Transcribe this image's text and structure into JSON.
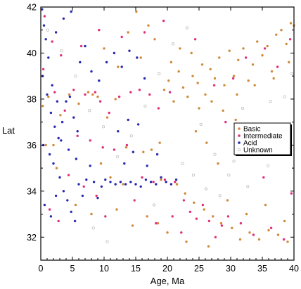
{
  "chart_data": {
    "type": "scatter",
    "xlabel": "Age, Ma",
    "ylabel": "Lat",
    "xlim": [
      0,
      40
    ],
    "ylim": [
      31,
      42
    ],
    "xticks": [
      0,
      5,
      10,
      15,
      20,
      25,
      30,
      35,
      40
    ],
    "yticks": [
      32,
      34,
      36,
      38,
      40,
      42
    ],
    "grid": false,
    "legend_position": "right",
    "colors": {
      "Basic": "#d08a3a",
      "Intermediate": "#e0307c",
      "Acid": "#2a2ab0",
      "Unknown": "#aaaaaa"
    },
    "series": [
      {
        "name": "Basic",
        "points": [
          [
            0.3,
            37.7
          ],
          [
            1.2,
            38.1
          ],
          [
            2.0,
            36.0
          ],
          [
            3.1,
            37.3
          ],
          [
            4.5,
            38.2
          ],
          [
            6.0,
            37.8
          ],
          [
            7.5,
            38.3
          ],
          [
            8.2,
            38.2
          ],
          [
            9.0,
            38.1
          ],
          [
            10.5,
            37.2
          ],
          [
            11.8,
            38.0
          ],
          [
            13.5,
            35.9
          ],
          [
            15.1,
            41.8
          ],
          [
            16.2,
            35.7
          ],
          [
            17.5,
            35.8
          ],
          [
            18.8,
            36.1
          ],
          [
            19.5,
            38.4
          ],
          [
            20.2,
            38.8
          ],
          [
            21.0,
            37.9
          ],
          [
            21.8,
            39.2
          ],
          [
            22.5,
            38.5
          ],
          [
            23.2,
            38.1
          ],
          [
            24.0,
            39.0
          ],
          [
            24.8,
            38.7
          ],
          [
            25.5,
            39.5
          ],
          [
            26.0,
            38.2
          ],
          [
            26.8,
            39.3
          ],
          [
            27.5,
            38.9
          ],
          [
            28.2,
            39.8
          ],
          [
            29.0,
            38.6
          ],
          [
            29.8,
            40.1
          ],
          [
            30.5,
            39.0
          ],
          [
            31.2,
            39.7
          ],
          [
            32.0,
            40.2
          ],
          [
            32.8,
            38.8
          ],
          [
            33.5,
            39.5
          ],
          [
            34.2,
            40.5
          ],
          [
            35.0,
            39.9
          ],
          [
            35.8,
            40.3
          ],
          [
            36.5,
            39.2
          ],
          [
            37.2,
            40.8
          ],
          [
            38.0,
            41.0
          ],
          [
            38.8,
            40.4
          ],
          [
            39.5,
            41.3
          ],
          [
            40.0,
            41.2
          ],
          [
            22.0,
            40.2
          ],
          [
            23.8,
            40.0
          ],
          [
            20.6,
            39.6
          ],
          [
            25.0,
            37.6
          ],
          [
            27.0,
            37.9
          ],
          [
            21.5,
            34.3
          ],
          [
            22.8,
            33.9
          ],
          [
            24.2,
            33.5
          ],
          [
            25.8,
            33.2
          ],
          [
            27.2,
            32.9
          ],
          [
            28.5,
            32.6
          ],
          [
            30.2,
            32.4
          ],
          [
            31.5,
            31.9
          ],
          [
            33.0,
            32.2
          ],
          [
            34.5,
            31.9
          ],
          [
            36.0,
            32.3
          ],
          [
            37.5,
            32.1
          ],
          [
            39.0,
            31.8
          ],
          [
            18.5,
            32.6
          ],
          [
            20.0,
            32.2
          ],
          [
            23.0,
            31.8
          ],
          [
            26.5,
            31.6
          ],
          [
            5.5,
            33.4
          ],
          [
            8.0,
            33.0
          ],
          [
            12.0,
            33.2
          ],
          [
            14.5,
            32.5
          ],
          [
            16.8,
            32.9
          ],
          [
            9.5,
            35.2
          ],
          [
            11.0,
            34.6
          ],
          [
            13.0,
            34.3
          ],
          [
            19.0,
            34.5
          ],
          [
            2.5,
            35.0
          ],
          [
            0.8,
            36.0
          ],
          [
            17.0,
            41.2
          ],
          [
            18.0,
            40.6
          ],
          [
            31.0,
            38.2
          ],
          [
            33.8,
            38.6
          ],
          [
            36.8,
            38.9
          ],
          [
            39.2,
            39.6
          ],
          [
            28.8,
            37.5
          ],
          [
            30.8,
            37.1
          ],
          [
            24.5,
            36.6
          ],
          [
            26.2,
            36.1
          ],
          [
            28.0,
            35.2
          ],
          [
            15.8,
            39.8
          ],
          [
            13.8,
            40.9
          ],
          [
            12.2,
            39.4
          ],
          [
            10.0,
            40.2
          ],
          [
            29.5,
            33.6
          ],
          [
            32.5,
            33.0
          ],
          [
            35.5,
            33.4
          ],
          [
            38.5,
            32.7
          ]
        ]
      },
      {
        "name": "Intermediate",
        "points": [
          [
            0.6,
            41.6
          ],
          [
            1.8,
            40.5
          ],
          [
            0.4,
            39.3
          ],
          [
            2.2,
            38.3
          ],
          [
            3.8,
            37.5
          ],
          [
            5.2,
            38.4
          ],
          [
            7.0,
            38.2
          ],
          [
            8.6,
            38.3
          ],
          [
            9.4,
            37.9
          ],
          [
            10.8,
            37.4
          ],
          [
            12.4,
            38.1
          ],
          [
            14.2,
            38.3
          ],
          [
            15.6,
            38.4
          ],
          [
            17.2,
            38.2
          ],
          [
            18.6,
            37.6
          ],
          [
            20.4,
            38.3
          ],
          [
            5.8,
            36.4
          ],
          [
            7.8,
            36.2
          ],
          [
            9.8,
            35.9
          ],
          [
            11.6,
            35.8
          ],
          [
            13.6,
            36.0
          ],
          [
            16.0,
            34.6
          ],
          [
            17.8,
            34.4
          ],
          [
            19.6,
            34.5
          ],
          [
            21.2,
            34.4
          ],
          [
            22.6,
            33.6
          ],
          [
            23.6,
            33.1
          ],
          [
            24.6,
            32.8
          ],
          [
            25.6,
            33.4
          ],
          [
            26.6,
            32.7
          ],
          [
            27.6,
            32.0
          ],
          [
            28.6,
            32.5
          ],
          [
            29.6,
            32.9
          ],
          [
            31.6,
            32.6
          ],
          [
            33.6,
            32.1
          ],
          [
            36.4,
            32.4
          ],
          [
            38.4,
            31.9
          ],
          [
            18.2,
            32.6
          ],
          [
            20.8,
            32.9
          ],
          [
            22.2,
            32.2
          ],
          [
            3.2,
            39.9
          ],
          [
            6.4,
            40.3
          ],
          [
            9.2,
            41.0
          ],
          [
            12.8,
            40.7
          ],
          [
            16.4,
            40.9
          ],
          [
            19.4,
            41.4
          ],
          [
            24.4,
            40.6
          ],
          [
            27.4,
            38.6
          ],
          [
            30.4,
            38.9
          ],
          [
            32.4,
            39.8
          ],
          [
            35.4,
            40.2
          ],
          [
            37.4,
            39.4
          ],
          [
            39.4,
            40.6
          ],
          [
            29.2,
            37.0
          ],
          [
            33.2,
            35.8
          ],
          [
            35.2,
            34.6
          ],
          [
            37.6,
            35.6
          ],
          [
            39.6,
            33.9
          ],
          [
            4.4,
            34.7
          ],
          [
            6.8,
            34.2
          ],
          [
            8.8,
            33.8
          ],
          [
            10.2,
            32.9
          ],
          [
            14.8,
            33.6
          ],
          [
            1.4,
            33.2
          ],
          [
            2.8,
            32.7
          ]
        ]
      },
      {
        "name": "Acid",
        "points": [
          [
            0.2,
            41.9
          ],
          [
            0.5,
            41.2
          ],
          [
            0.8,
            40.6
          ],
          [
            1.2,
            39.8
          ],
          [
            0.3,
            39.0
          ],
          [
            1.0,
            38.2
          ],
          [
            1.6,
            37.4
          ],
          [
            2.2,
            36.8
          ],
          [
            2.8,
            36.3
          ],
          [
            3.4,
            37.0
          ],
          [
            4.0,
            37.9
          ],
          [
            4.6,
            38.1
          ],
          [
            5.2,
            37.2
          ],
          [
            5.8,
            36.6
          ],
          [
            0.4,
            36.0
          ],
          [
            1.4,
            35.6
          ],
          [
            2.0,
            35.2
          ],
          [
            3.0,
            34.6
          ],
          [
            3.6,
            34.0
          ],
          [
            4.2,
            33.6
          ],
          [
            4.8,
            33.1
          ],
          [
            5.4,
            32.7
          ],
          [
            6.0,
            34.3
          ],
          [
            6.6,
            33.8
          ],
          [
            7.2,
            34.5
          ],
          [
            7.8,
            35.1
          ],
          [
            8.4,
            34.4
          ],
          [
            9.0,
            33.7
          ],
          [
            9.6,
            34.2
          ],
          [
            10.2,
            34.5
          ],
          [
            11.0,
            34.4
          ],
          [
            11.8,
            34.3
          ],
          [
            12.6,
            34.4
          ],
          [
            13.4,
            34.3
          ],
          [
            14.2,
            34.4
          ],
          [
            15.0,
            34.3
          ],
          [
            15.8,
            34.2
          ],
          [
            16.6,
            34.5
          ],
          [
            17.4,
            34.4
          ],
          [
            18.2,
            34.3
          ],
          [
            19.0,
            34.6
          ],
          [
            19.8,
            34.4
          ],
          [
            20.6,
            34.3
          ],
          [
            21.4,
            34.5
          ],
          [
            6.2,
            39.6
          ],
          [
            7.0,
            40.3
          ],
          [
            8.0,
            39.2
          ],
          [
            9.2,
            38.8
          ],
          [
            10.4,
            39.6
          ],
          [
            11.6,
            40.0
          ],
          [
            12.8,
            39.4
          ],
          [
            14.0,
            40.1
          ],
          [
            15.2,
            39.8
          ],
          [
            16.4,
            38.9
          ],
          [
            2.4,
            40.9
          ],
          [
            3.6,
            41.5
          ],
          [
            4.8,
            41.8
          ],
          [
            1.8,
            38.6
          ],
          [
            2.6,
            37.9
          ],
          [
            3.2,
            36.2
          ],
          [
            4.4,
            35.8
          ],
          [
            5.6,
            35.4
          ],
          [
            13.2,
            35.2
          ],
          [
            14.6,
            35.7
          ],
          [
            0.6,
            33.4
          ],
          [
            1.6,
            32.9
          ],
          [
            2.4,
            33.8
          ],
          [
            12.2,
            36.6
          ],
          [
            13.8,
            37.1
          ],
          [
            15.4,
            36.9
          ],
          [
            16.8,
            35.1
          ],
          [
            18.4,
            35.6
          ]
        ]
      },
      {
        "name": "Unknown",
        "points": [
          [
            1.1,
            41.0
          ],
          [
            3.3,
            40.1
          ],
          [
            5.5,
            39.0
          ],
          [
            7.7,
            37.5
          ],
          [
            9.9,
            36.8
          ],
          [
            12.1,
            35.5
          ],
          [
            14.3,
            36.4
          ],
          [
            16.5,
            37.7
          ],
          [
            18.7,
            39.1
          ],
          [
            20.9,
            40.4
          ],
          [
            23.1,
            41.1
          ],
          [
            25.3,
            36.9
          ],
          [
            27.5,
            35.6
          ],
          [
            29.7,
            34.7
          ],
          [
            31.9,
            37.6
          ],
          [
            34.1,
            36.5
          ],
          [
            36.3,
            37.9
          ],
          [
            38.5,
            38.1
          ],
          [
            39.7,
            39.1
          ],
          [
            26.1,
            34.1
          ],
          [
            28.3,
            33.8
          ],
          [
            30.5,
            35.3
          ],
          [
            8.3,
            32.4
          ],
          [
            10.5,
            31.8
          ],
          [
            17.9,
            33.4
          ],
          [
            22.4,
            35.2
          ],
          [
            24.1,
            34.7
          ],
          [
            32.7,
            34.2
          ],
          [
            35.9,
            35.1
          ],
          [
            37.9,
            36.8
          ]
        ]
      }
    ]
  }
}
